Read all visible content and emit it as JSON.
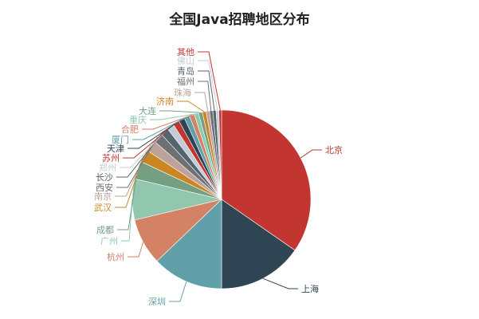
{
  "chart_data": {
    "type": "pie",
    "title": "全国Java招聘地区分布",
    "slices": [
      {
        "label": "北京",
        "value": 35.0,
        "color": "#c23531"
      },
      {
        "label": "上海",
        "value": 15.5,
        "color": "#2f4554"
      },
      {
        "label": "深圳",
        "value": 13.0,
        "color": "#61a0a8"
      },
      {
        "label": "杭州",
        "value": 8.5,
        "color": "#d48265"
      },
      {
        "label": "广州",
        "value": 7.5,
        "color": "#91c7ae"
      },
      {
        "label": "成都",
        "value": 3.3,
        "color": "#749f83"
      },
      {
        "label": "武汉",
        "value": 2.3,
        "color": "#ca8622"
      },
      {
        "label": "南京",
        "value": 2.1,
        "color": "#bda29a"
      },
      {
        "label": "西安",
        "value": 1.8,
        "color": "#6e7074"
      },
      {
        "label": "长沙",
        "value": 1.5,
        "color": "#546570"
      },
      {
        "label": "郑州",
        "value": 1.3,
        "color": "#c4ccd3"
      },
      {
        "label": "苏州",
        "value": 1.2,
        "color": "#c23531"
      },
      {
        "label": "天津",
        "value": 1.1,
        "color": "#2f4554"
      },
      {
        "label": "厦门",
        "value": 1.0,
        "color": "#61a0a8"
      },
      {
        "label": "合肥",
        "value": 0.9,
        "color": "#d48265"
      },
      {
        "label": "重庆",
        "value": 0.8,
        "color": "#91c7ae"
      },
      {
        "label": "大连",
        "value": 0.7,
        "color": "#749f83"
      },
      {
        "label": "济南",
        "value": 0.7,
        "color": "#ca8622"
      },
      {
        "label": "珠海",
        "value": 0.6,
        "color": "#bda29a"
      },
      {
        "label": "福州",
        "value": 0.6,
        "color": "#6e7074"
      },
      {
        "label": "青岛",
        "value": 0.6,
        "color": "#546570"
      },
      {
        "label": "佛山",
        "value": 0.5,
        "color": "#c4ccd3"
      },
      {
        "label": "其他",
        "value": 0.5,
        "color": "#c23531"
      }
    ]
  }
}
